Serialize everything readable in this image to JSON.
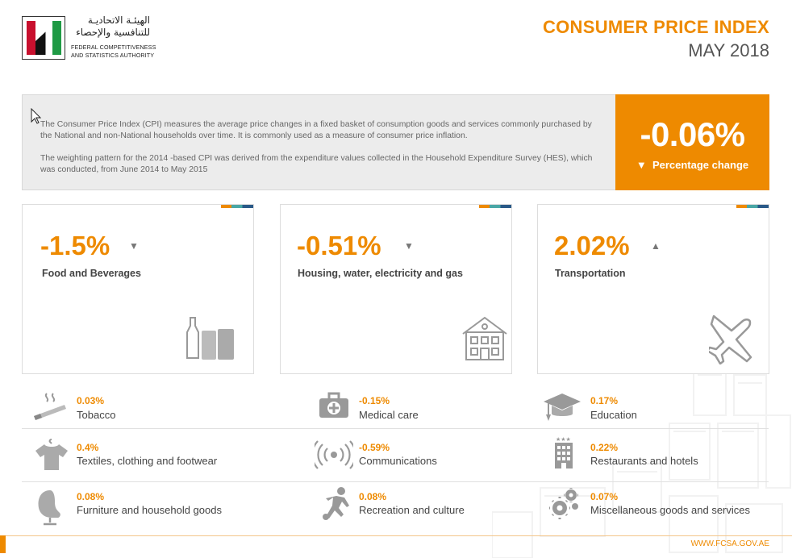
{
  "header": {
    "org_ar": "الهيئـة الاتحاديـة للتنافسية والإحصاء",
    "org_en_1": "Federal Competitiveness",
    "org_en_2": "and Statistics Authority",
    "title": "CONSUMER PRICE INDEX",
    "subtitle": "MAY 2018"
  },
  "intro": {
    "para1": "The Consumer Price Index (CPI) measures the average price changes in a fixed basket of consumption goods and services commonly purchased by the National and non-National households over time. It is commonly used as a measure of consumer price inflation.",
    "para2": "The weighting pattern for the 2014 -based CPI was derived from the expenditure values collected in the Household Expenditure Survey (HES), which was conducted, from June 2014 to May 2015"
  },
  "headline": {
    "value": "-0.06%",
    "label": "Percentage change",
    "arrow": "▼"
  },
  "cards": [
    {
      "value": "-1.5%",
      "label": "Food and Beverages",
      "arrow": "▼",
      "icon": "bottle-cans-icon"
    },
    {
      "value": "-0.51%",
      "label": "Housing, water, electricity and gas",
      "arrow": "▼",
      "icon": "house-icon"
    },
    {
      "value": "2.02%",
      "label": "Transportation",
      "arrow": "▲",
      "icon": "airplane-icon"
    }
  ],
  "items": [
    {
      "value": "0.03%",
      "label": "Tobacco",
      "icon": "cigarette-icon"
    },
    {
      "value": "-0.15%",
      "label": "Medical care",
      "icon": "first-aid-kit-icon"
    },
    {
      "value": "0.17%",
      "label": "Education",
      "icon": "graduation-cap-icon"
    },
    {
      "value": "0.4%",
      "label": "Textiles, clothing and footwear",
      "icon": "tshirt-icon"
    },
    {
      "value": "-0.59%",
      "label": "Communications",
      "icon": "signal-waves-icon"
    },
    {
      "value": "0.22%",
      "label": "Restaurants and hotels",
      "icon": "hotel-building-icon"
    },
    {
      "value": "0.08%",
      "label": "Furniture and household goods",
      "icon": "egg-chair-icon"
    },
    {
      "value": "0.08%",
      "label": "Recreation and culture",
      "icon": "football-player-icon"
    },
    {
      "value": "0.07%",
      "label": "Miscellaneous goods and services",
      "icon": "gears-icon"
    }
  ],
  "footer": {
    "url": "WWW.FCSA.GOV.AE"
  },
  "colors": {
    "accent": "#ee8a00",
    "teal": "#4aa7a6",
    "navy": "#2a5a88"
  }
}
